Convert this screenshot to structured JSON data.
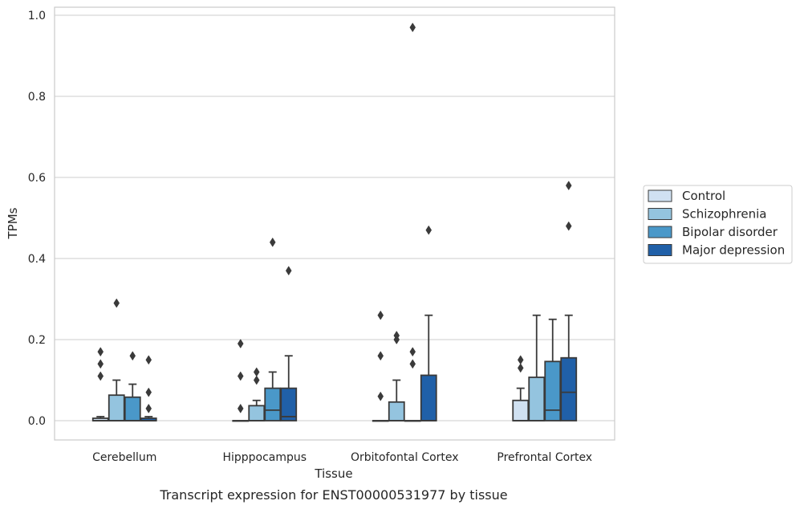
{
  "chart_data": {
    "type": "box",
    "xlabel": "Tissue",
    "ylabel": "TPMs",
    "caption": "Transcript expression for ENST00000531977 by tissue",
    "ylim": [
      -0.047,
      1.02
    ],
    "yticks": [
      {
        "value": 0.0,
        "label": "0.0"
      },
      {
        "value": 0.2,
        "label": "0.2"
      },
      {
        "value": 0.4,
        "label": "0.4"
      },
      {
        "value": 0.6,
        "label": "0.6"
      },
      {
        "value": 0.8,
        "label": "0.8"
      },
      {
        "value": 1.0,
        "label": "1.0"
      }
    ],
    "grid": "horizontal",
    "legend_position": "right",
    "categories": [
      "Cerebellum",
      "Hipppocampus",
      "Orbitofontal Cortex",
      "Prefrontal Cortex"
    ],
    "series": [
      {
        "name": "Control",
        "color": "#d0e1f2",
        "boxes": [
          {
            "q1": 0.0,
            "median": 0.0,
            "q3": 0.006,
            "whisker_low": 0.0,
            "whisker_high": 0.01,
            "outliers": [
              0.11,
              0.14,
              0.17
            ]
          },
          {
            "q1": 0.0,
            "median": 0.0,
            "q3": 0.0,
            "whisker_low": 0.0,
            "whisker_high": 0.0,
            "outliers": [
              0.03,
              0.11,
              0.19
            ]
          },
          {
            "q1": 0.0,
            "median": 0.0,
            "q3": 0.0,
            "whisker_low": 0.0,
            "whisker_high": 0.0,
            "outliers": [
              0.06,
              0.16,
              0.26
            ]
          },
          {
            "q1": 0.0,
            "median": 0.0,
            "q3": 0.05,
            "whisker_low": 0.0,
            "whisker_high": 0.08,
            "outliers": [
              0.13,
              0.15
            ]
          }
        ]
      },
      {
        "name": "Schizophrenia",
        "color": "#94c4df",
        "boxes": [
          {
            "q1": 0.0,
            "median": 0.0,
            "q3": 0.063,
            "whisker_low": 0.0,
            "whisker_high": 0.1,
            "outliers": [
              0.29
            ]
          },
          {
            "q1": 0.0,
            "median": 0.0,
            "q3": 0.037,
            "whisker_low": 0.0,
            "whisker_high": 0.05,
            "outliers": [
              0.1,
              0.12
            ]
          },
          {
            "q1": 0.0,
            "median": 0.0,
            "q3": 0.046,
            "whisker_low": 0.0,
            "whisker_high": 0.1,
            "outliers": [
              0.2,
              0.21
            ]
          },
          {
            "q1": 0.0,
            "median": 0.0,
            "q3": 0.107,
            "whisker_low": 0.0,
            "whisker_high": 0.26,
            "outliers": []
          }
        ]
      },
      {
        "name": "Bipolar disorder",
        "color": "#4a98c9",
        "boxes": [
          {
            "q1": 0.0,
            "median": 0.0,
            "q3": 0.058,
            "whisker_low": 0.0,
            "whisker_high": 0.09,
            "outliers": [
              0.16
            ]
          },
          {
            "q1": 0.0,
            "median": 0.026,
            "q3": 0.08,
            "whisker_low": 0.0,
            "whisker_high": 0.12,
            "outliers": [
              0.44
            ]
          },
          {
            "q1": 0.0,
            "median": 0.0,
            "q3": 0.0,
            "whisker_low": 0.0,
            "whisker_high": 0.0,
            "outliers": [
              0.14,
              0.17,
              0.97
            ]
          },
          {
            "q1": 0.0,
            "median": 0.026,
            "q3": 0.146,
            "whisker_low": 0.0,
            "whisker_high": 0.25,
            "outliers": []
          }
        ]
      },
      {
        "name": "Major depression",
        "color": "#2060a8",
        "boxes": [
          {
            "q1": 0.0,
            "median": 0.0,
            "q3": 0.006,
            "whisker_low": 0.0,
            "whisker_high": 0.01,
            "outliers": [
              0.03,
              0.07,
              0.15
            ]
          },
          {
            "q1": 0.0,
            "median": 0.01,
            "q3": 0.08,
            "whisker_low": 0.0,
            "whisker_high": 0.16,
            "outliers": [
              0.37
            ]
          },
          {
            "q1": 0.0,
            "median": 0.0,
            "q3": 0.112,
            "whisker_low": 0.0,
            "whisker_high": 0.26,
            "outliers": [
              0.47
            ]
          },
          {
            "q1": 0.0,
            "median": 0.07,
            "q3": 0.155,
            "whisker_low": 0.0,
            "whisker_high": 0.26,
            "outliers": [
              0.48,
              0.58
            ]
          }
        ]
      }
    ]
  }
}
